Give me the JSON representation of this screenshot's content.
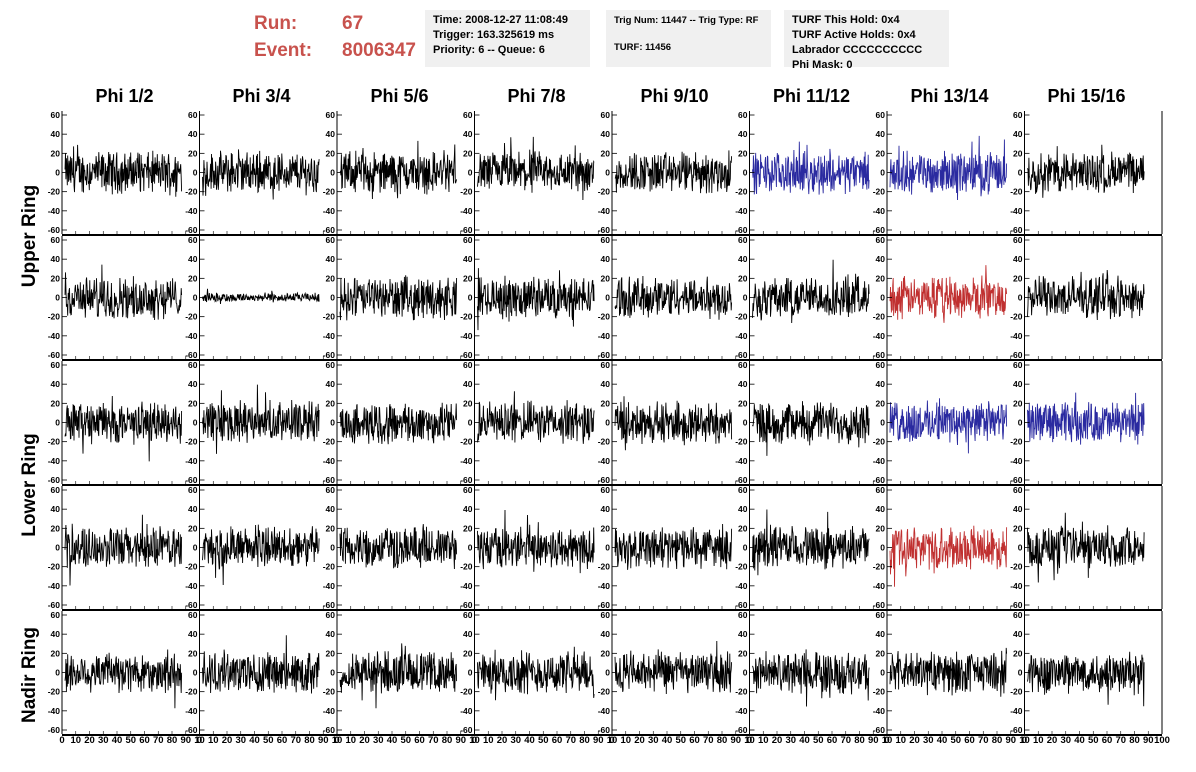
{
  "header": {
    "run_label": "Run:",
    "run_value": "67",
    "event_label": "Event:",
    "event_value": "8006347",
    "time": "Time: 2008-12-27 11:08:49",
    "trigger": "Trigger: 163.325619 ms",
    "priority": "Priority: 6 -- Queue: 6",
    "trig_num": "Trig Num: 11447 -- Trig Type: RF",
    "turf": "TURF: 11456",
    "turf_this_hold": "TURF This Hold: 0x4",
    "turf_active_holds": "TURF Active Holds: 0x4",
    "labrador": "Labrador CCCCCCCCCC",
    "phi_mask": "Phi Mask: 0"
  },
  "chart_data": {
    "type": "line",
    "columns": [
      "Phi 1/2",
      "Phi 3/4",
      "Phi 5/6",
      "Phi 7/8",
      "Phi 9/10",
      "Phi 11/12",
      "Phi 13/14",
      "Phi 15/16"
    ],
    "ring_labels": [
      {
        "name": "Upper Ring",
        "rows": [
          0,
          1
        ]
      },
      {
        "name": "Lower Ring",
        "rows": [
          2,
          3
        ]
      },
      {
        "name": "Nadir Ring",
        "rows": [
          4,
          4
        ]
      }
    ],
    "rows": 5,
    "xlim": [
      0,
      100
    ],
    "ylim": [
      -60,
      60
    ],
    "x_ticks": [
      "0",
      "10",
      "20",
      "30",
      "40",
      "50",
      "60",
      "70",
      "80",
      "90",
      "100"
    ],
    "x_tick_labels_text": "0 10 20 30 40 50 60 70 80 90 10",
    "y_ticks": [
      "60",
      "40",
      "20",
      "0",
      "-20",
      "-40",
      "-60"
    ],
    "colors": {
      "default": "#000000",
      "blue": "#2a2aa0",
      "red": "#c03030"
    },
    "highlighted": [
      {
        "row": 0,
        "col": 5,
        "color": "blue"
      },
      {
        "row": 0,
        "col": 6,
        "color": "blue"
      },
      {
        "row": 1,
        "col": 6,
        "color": "red"
      },
      {
        "row": 2,
        "col": 6,
        "color": "blue"
      },
      {
        "row": 2,
        "col": 7,
        "color": "blue"
      },
      {
        "row": 3,
        "col": 6,
        "color": "red"
      }
    ],
    "quiet_traces": [
      {
        "row": 1,
        "col": 1,
        "amplitude": 4
      }
    ],
    "default_amplitude": 18
  }
}
